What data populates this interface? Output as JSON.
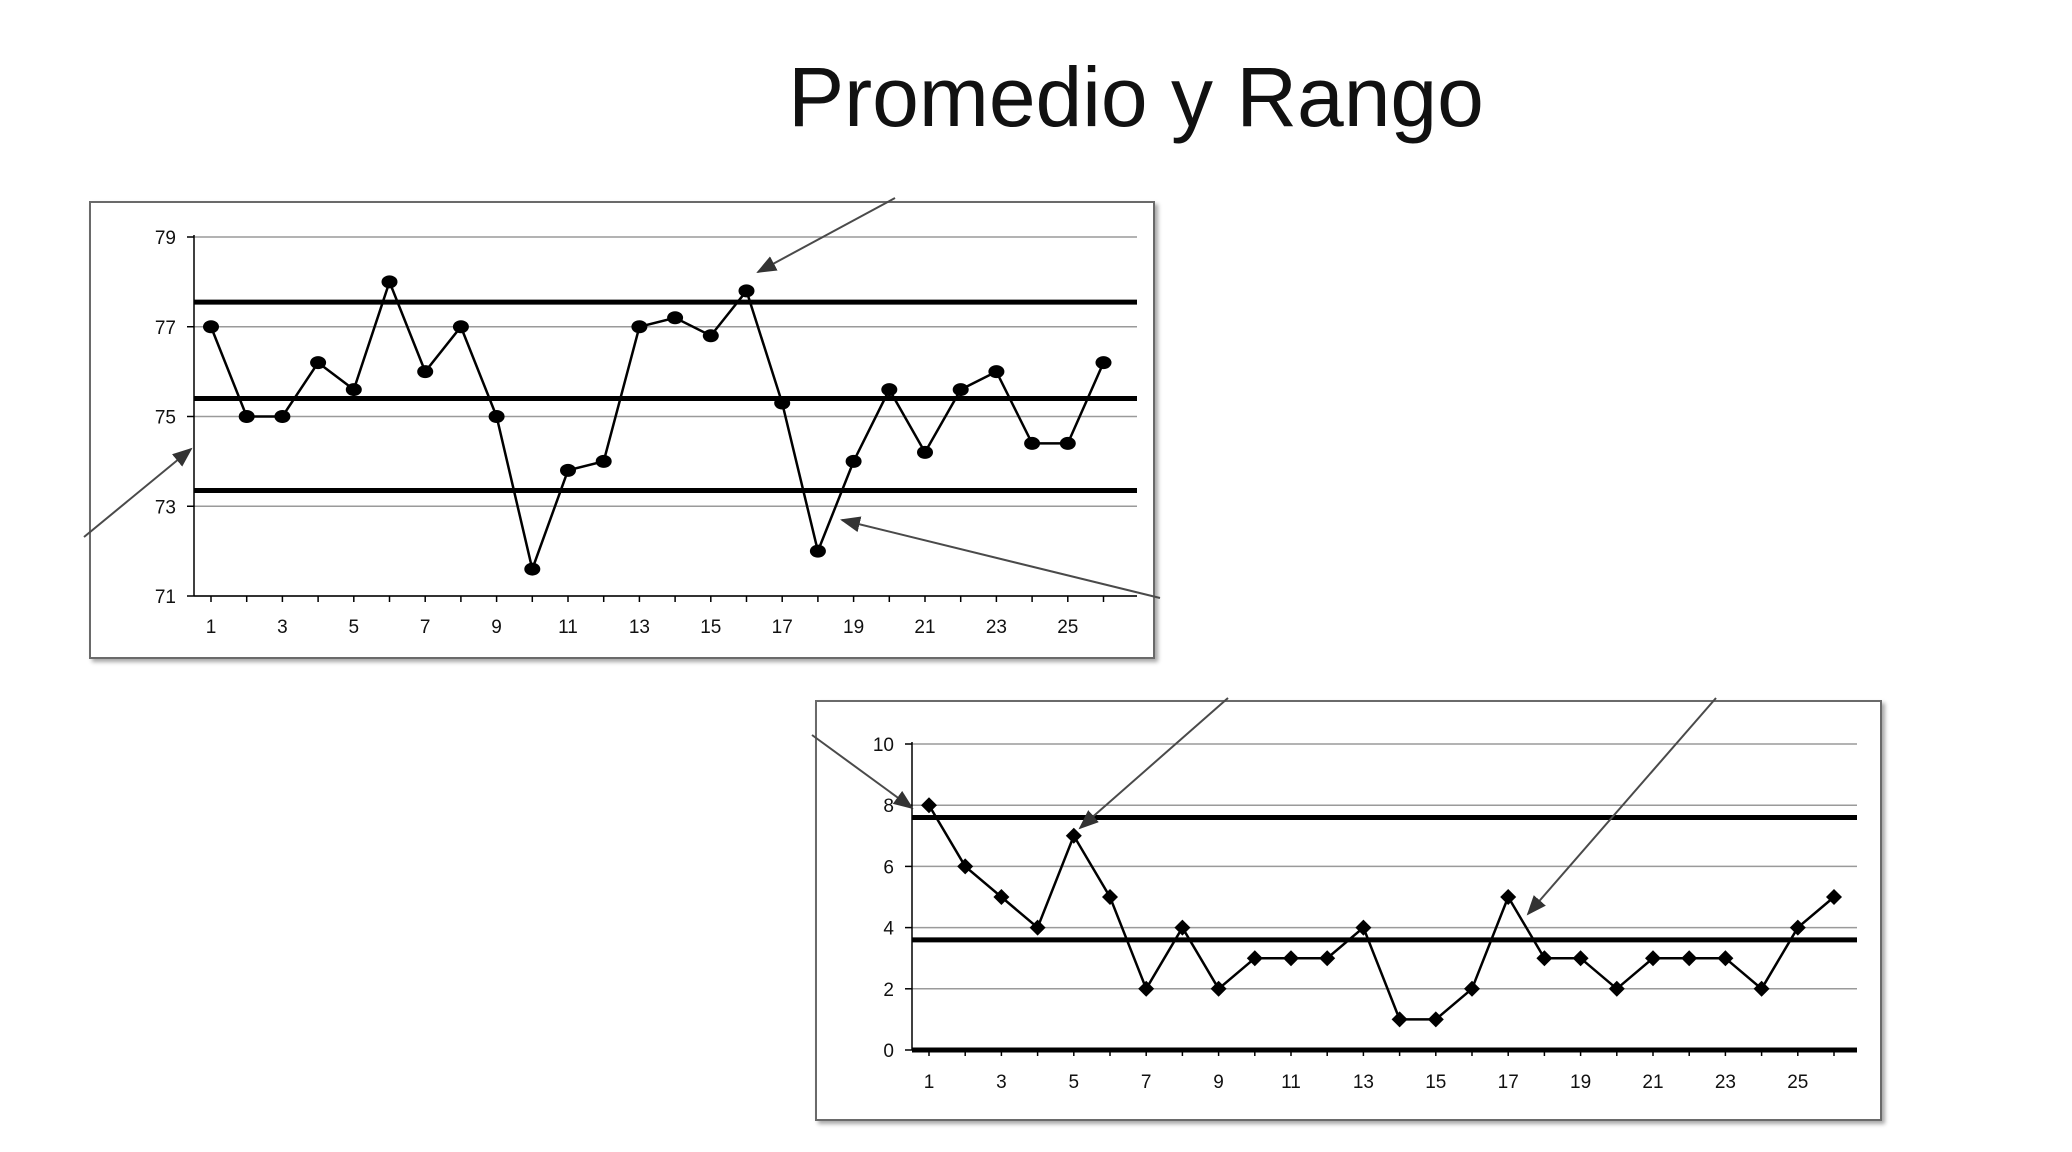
{
  "slide": {
    "title": "Promedio y Rango"
  },
  "chart_data": [
    {
      "type": "line",
      "x": [
        1,
        2,
        3,
        4,
        5,
        6,
        7,
        8,
        9,
        10,
        11,
        12,
        13,
        14,
        15,
        16,
        17,
        18,
        19,
        20,
        21,
        22,
        23,
        24,
        25,
        26
      ],
      "series": [
        {
          "values": [
            77,
            75,
            75,
            76.2,
            75.6,
            78,
            76,
            77,
            75,
            71.6,
            73.8,
            74,
            77,
            77.2,
            76.8,
            77.8,
            75.3,
            72,
            74,
            75.6,
            74.2,
            75.6,
            76,
            74.4,
            74.4,
            76.2
          ],
          "marker": "circle"
        }
      ],
      "control_lines": [
        77.55,
        75.4,
        73.35
      ],
      "ylim": [
        71,
        79
      ],
      "yticks": [
        "71",
        "73",
        "75",
        "77",
        "79"
      ],
      "xticks": [
        "1",
        "3",
        "5",
        "7",
        "9",
        "11",
        "13",
        "15",
        "17",
        "19",
        "21",
        "23",
        "25"
      ],
      "grid": true,
      "color": "#000000",
      "grid_color": "#9a9a9a"
    },
    {
      "type": "line",
      "x": [
        1,
        2,
        3,
        4,
        5,
        6,
        7,
        8,
        9,
        10,
        11,
        12,
        13,
        14,
        15,
        16,
        17,
        18,
        19,
        20,
        21,
        22,
        23,
        24,
        25,
        26
      ],
      "series": [
        {
          "values": [
            8,
            6,
            5,
            4,
            7,
            5,
            2,
            4,
            2,
            3,
            3,
            3,
            4,
            1,
            1,
            2,
            5,
            3,
            3,
            2,
            3,
            3,
            3,
            2,
            4,
            5
          ],
          "marker": "diamond"
        }
      ],
      "control_lines": [
        7.6,
        3.6,
        0
      ],
      "ylim": [
        0,
        10
      ],
      "yticks": [
        "0",
        "2",
        "4",
        "6",
        "8",
        "10"
      ],
      "xticks": [
        "1",
        "3",
        "5",
        "7",
        "9",
        "11",
        "13",
        "15",
        "17",
        "19",
        "21",
        "23",
        "25"
      ],
      "grid": true,
      "color": "#000000",
      "grid_color": "#9a9a9a"
    }
  ]
}
